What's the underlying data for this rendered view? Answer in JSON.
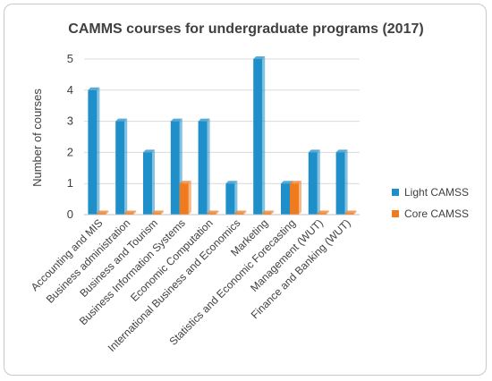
{
  "chart_data": {
    "type": "bar",
    "title": "CAMMS courses for undergraduate programs (2017)",
    "xlabel": "",
    "ylabel": "Number of courses",
    "ylim": [
      0,
      5
    ],
    "yticks": [
      0,
      1,
      2,
      3,
      4,
      5
    ],
    "grid": true,
    "legend_position": "right",
    "categories": [
      "Accounting and MIS",
      "Business administration",
      "Business and Tourism",
      "Business Information Systems",
      "Economic Computation",
      "International Business and Economics",
      "Marketing",
      "Statistics and Economic Forecasting",
      "Management (WUT)",
      "Finance and Banking (WUT)"
    ],
    "series": [
      {
        "name": "Light CAMSS",
        "color": "#1f8fc9",
        "values": [
          4,
          3,
          2,
          3,
          3,
          1,
          5,
          1,
          2,
          2
        ]
      },
      {
        "name": "Core CAMSS",
        "color": "#f07b1e",
        "values": [
          0,
          0,
          0,
          1,
          0,
          0,
          0,
          1,
          0,
          0
        ]
      }
    ]
  }
}
